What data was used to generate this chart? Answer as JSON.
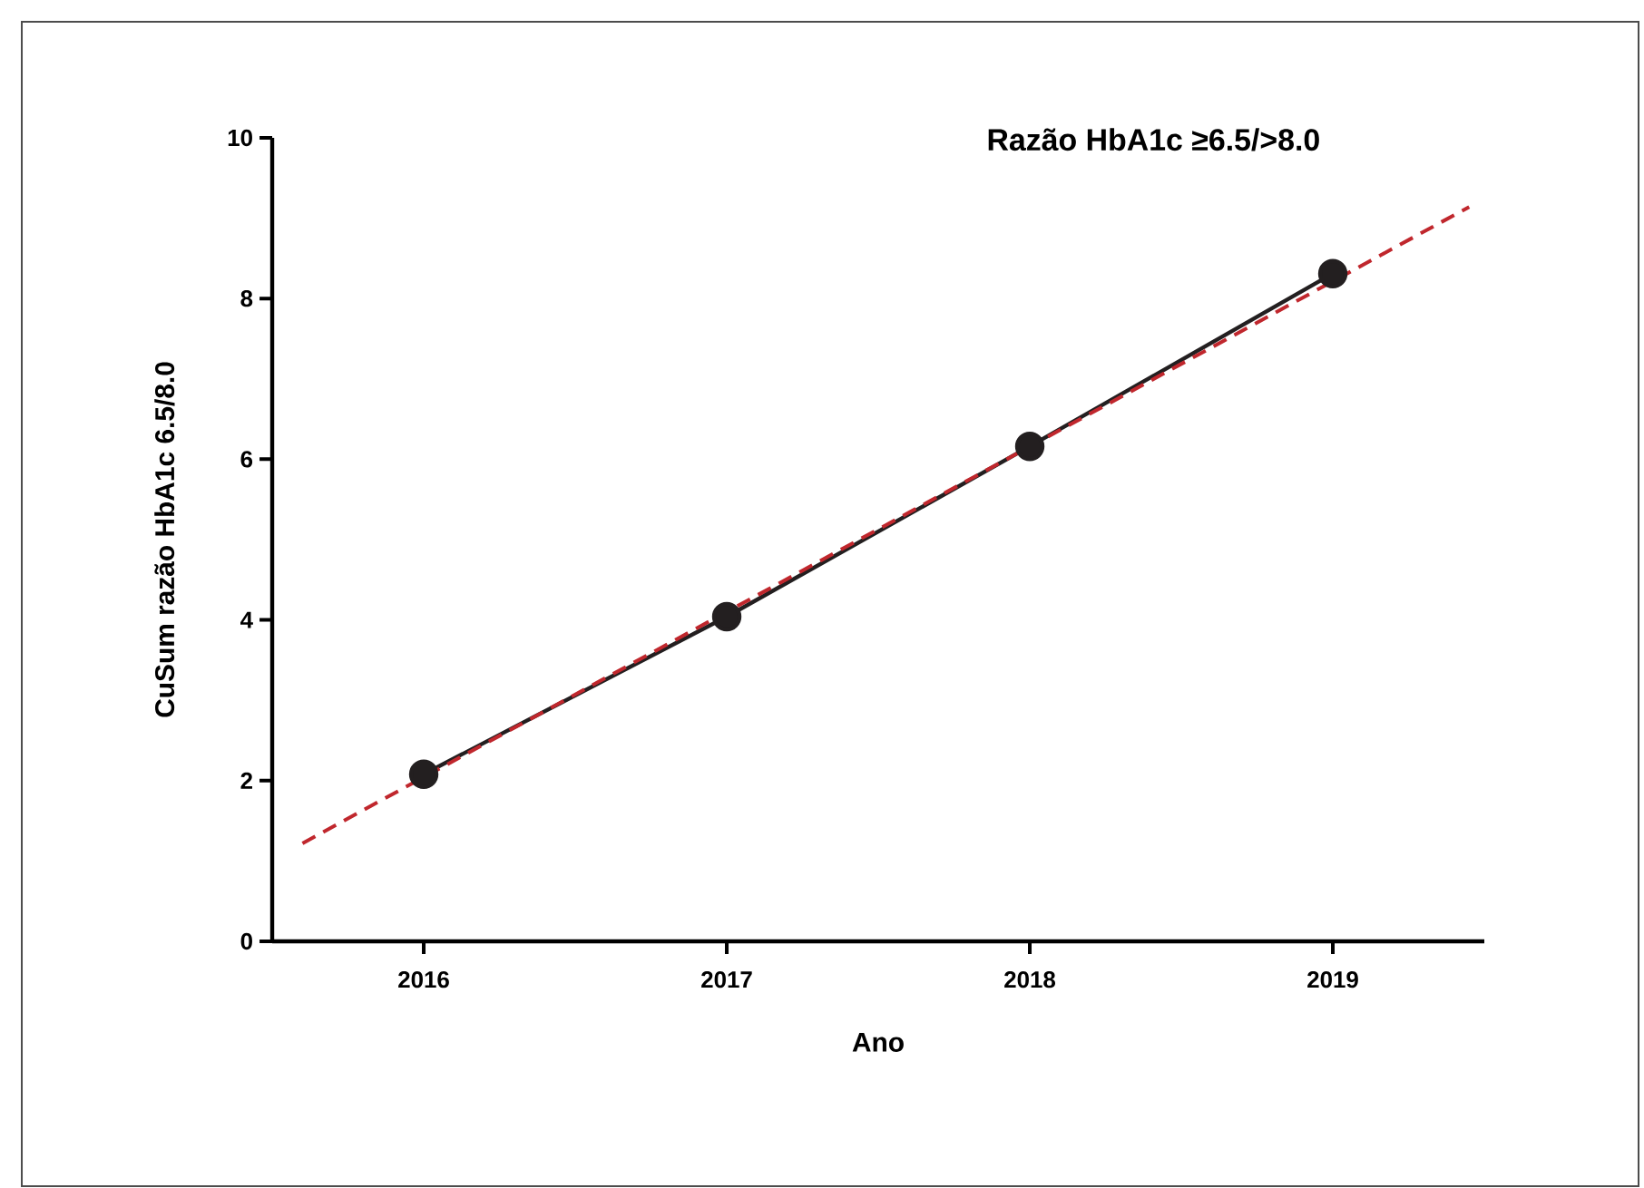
{
  "chart_data": {
    "type": "line",
    "title": "Razão HbA1c ≥6.5/>8.0",
    "xlabel": "Ano",
    "ylabel": "CuSum razão HbA1c 6.5/8.0",
    "xlim": [
      2015.5,
      2019.5
    ],
    "xticks": [
      2016,
      2017,
      2018,
      2019
    ],
    "ylim": [
      0,
      10
    ],
    "yticks": [
      0,
      2,
      4,
      6,
      8,
      10
    ],
    "grid": false,
    "series": [
      {
        "color": "#231f20",
        "x": [
          2016,
          2017,
          2018,
          2019
        ],
        "values": [
          2.08,
          4.04,
          6.16,
          8.31
        ],
        "marker": "circle",
        "line_style": "solid"
      },
      {
        "color": "#c0272d",
        "x": [
          2015.6,
          2019.45
        ],
        "values": [
          1.22,
          9.14
        ],
        "marker": "none",
        "line_style": "dashed"
      }
    ]
  }
}
